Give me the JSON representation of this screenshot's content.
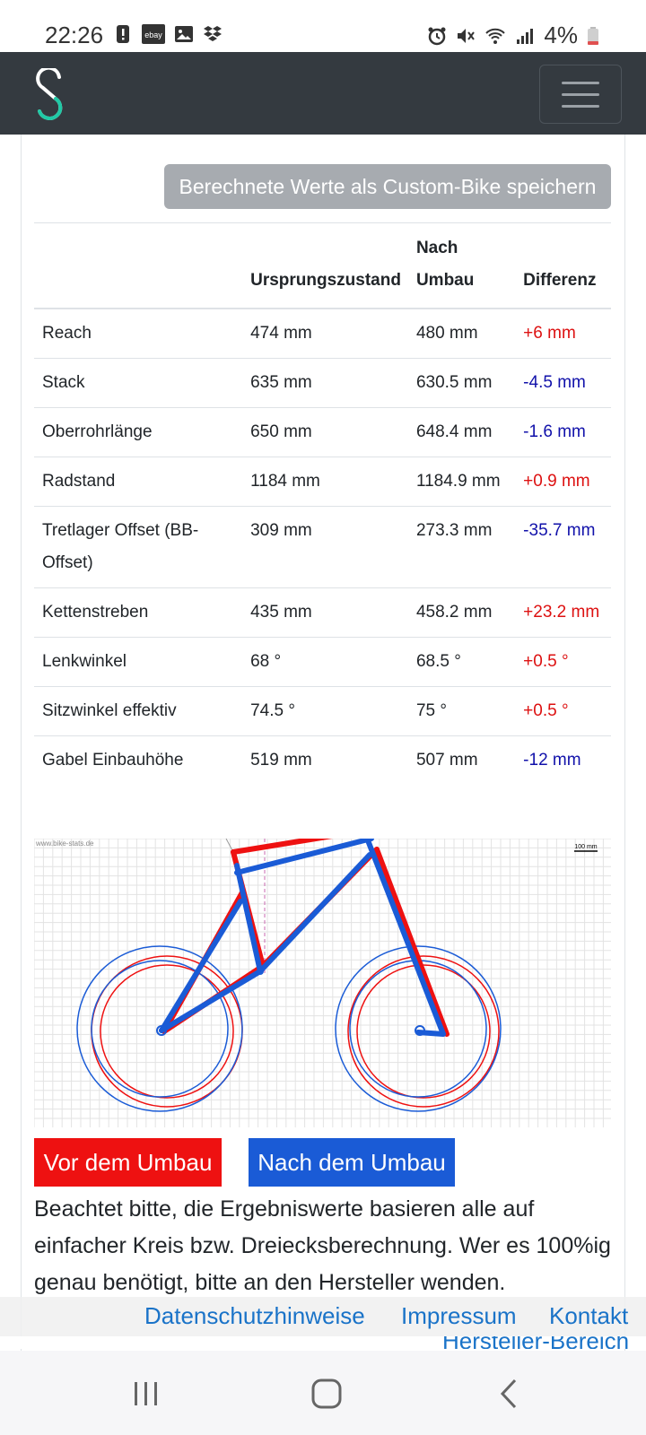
{
  "status_bar": {
    "time": "22:26",
    "left_icons": [
      "alert-icon",
      "ebay-icon",
      "image-icon",
      "dropbox-icon"
    ],
    "ebay_text": "ebay",
    "right_icons": [
      "alarm-icon",
      "mute-icon",
      "wifi-icon",
      "signal-icon",
      "battery-icon"
    ],
    "battery_text": "4%"
  },
  "navbar": {
    "logo": "bike-stats-logo",
    "menu_icon": "hamburger-icon"
  },
  "actions": {
    "save_label": "Berechnete Werte als Custom-Bike speichern"
  },
  "table": {
    "headers": [
      "",
      "Ursprungszustand",
      "Nach Umbau",
      "Differenz"
    ],
    "rows": [
      {
        "label": "Reach",
        "before": "474 mm",
        "after": "480 mm",
        "diff": "+6 mm",
        "sign": "pos"
      },
      {
        "label": "Stack",
        "before": "635 mm",
        "after": "630.5 mm",
        "diff": "-4.5 mm",
        "sign": "neg"
      },
      {
        "label": "Oberrohrlänge",
        "before": "650 mm",
        "after": "648.4 mm",
        "diff": "-1.6 mm",
        "sign": "neg"
      },
      {
        "label": "Radstand",
        "before": "1184 mm",
        "after": "1184.9 mm",
        "diff": "+0.9 mm",
        "sign": "pos"
      },
      {
        "label": "Tretlager Offset (BB-Offset)",
        "before": "309 mm",
        "after": "273.3 mm",
        "diff": "-35.7 mm",
        "sign": "neg"
      },
      {
        "label": "Kettenstreben",
        "before": "435 mm",
        "after": "458.2 mm",
        "diff": "+23.2 mm",
        "sign": "pos"
      },
      {
        "label": "Lenkwinkel",
        "before": "68 °",
        "after": "68.5 °",
        "diff": "+0.5 °",
        "sign": "pos"
      },
      {
        "label": "Sitzwinkel effektiv",
        "before": "74.5 °",
        "after": "75 °",
        "diff": "+0.5 °",
        "sign": "pos"
      },
      {
        "label": "Gabel Einbauhöhe",
        "before": "519 mm",
        "after": "507 mm",
        "diff": "-12 mm",
        "sign": "neg"
      }
    ]
  },
  "geometry": {
    "watermark": "www.bike-stats.de",
    "scale_label": "100 mm",
    "before_color": "#ee1111",
    "after_color": "#1a5bd6"
  },
  "legend": {
    "before": "Vor dem Umbau",
    "after": "Nach dem Umbau"
  },
  "note": "Beachtet bitte, die Ergebniswerte basieren alle auf einfacher Kreis bzw. Dreiecksberechnung. Wer es 100%ig genau benötigt, bitte an den Hersteller wenden.",
  "footer": {
    "links": [
      "Datenschutzhinweise",
      "Impressum",
      "Kontakt"
    ],
    "extra_link": "Hersteller-Bereich"
  },
  "colors": {
    "positive": "#dd1111",
    "negative": "#1111aa",
    "navbar": "#343a40",
    "link": "#1a73c8"
  }
}
